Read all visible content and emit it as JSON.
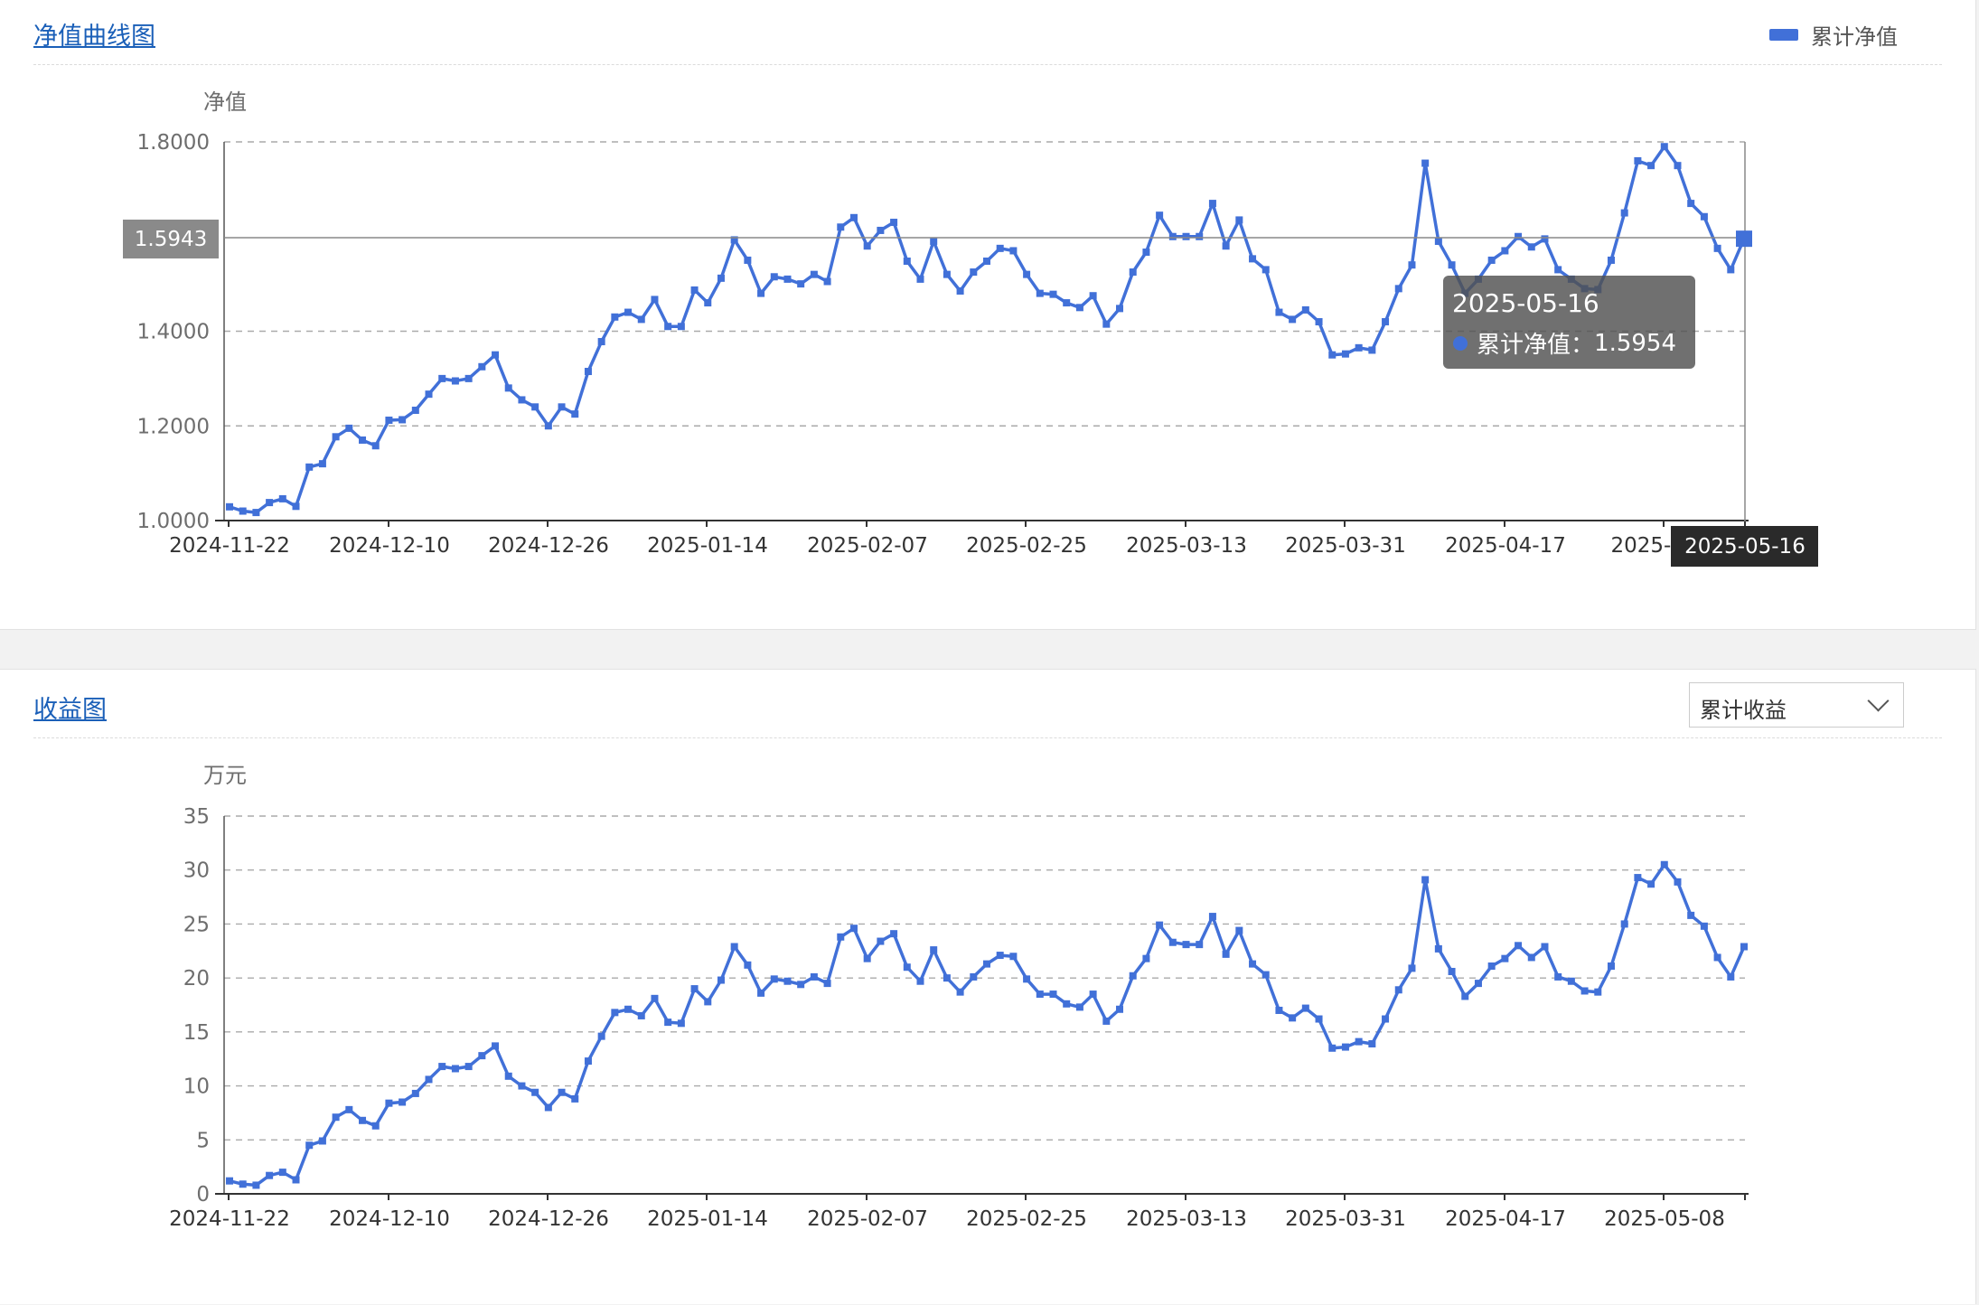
{
  "colors": {
    "series": "#4170d8",
    "title_link": "#1a5fb8",
    "grid": "#aaaaaa"
  },
  "nav_panel": {
    "title": "净值曲线图",
    "legend_label": "累计净值",
    "tooltip": {
      "date": "2025-05-16",
      "series_name": "累计净值",
      "sep": "：",
      "value": "1.5954"
    },
    "y_pointer_label": "1.5943",
    "x_pointer_label": "2025-05-16"
  },
  "profit_panel": {
    "title": "收益图",
    "select_value": "累计收益",
    "select_icon": "chevron-down-icon"
  },
  "chart_data": [
    {
      "type": "line",
      "ylabel": "净值",
      "ylim": [
        1.0,
        1.8
      ],
      "yticks": [
        "1.0000",
        "1.2000",
        "1.4000",
        "1.8000"
      ],
      "grid": true,
      "legend": "top-right",
      "xtick_labels": [
        "2024-11-22",
        "2024-12-10",
        "2024-12-26",
        "2025-01-14",
        "2025-02-07",
        "2025-02-25",
        "2025-03-13",
        "2025-03-31",
        "2025-04-17",
        "2025-05-0"
      ],
      "series": [
        {
          "name": "累计净值",
          "values": [
            1.029,
            1.02,
            1.017,
            1.038,
            1.046,
            1.03,
            1.113,
            1.12,
            1.177,
            1.195,
            1.17,
            1.158,
            1.212,
            1.213,
            1.233,
            1.267,
            1.3,
            1.295,
            1.3,
            1.325,
            1.35,
            1.28,
            1.255,
            1.24,
            1.2,
            1.24,
            1.225,
            1.315,
            1.378,
            1.43,
            1.44,
            1.425,
            1.467,
            1.41,
            1.41,
            1.487,
            1.46,
            1.512,
            1.593,
            1.55,
            1.48,
            1.515,
            1.51,
            1.5,
            1.52,
            1.505,
            1.62,
            1.64,
            1.58,
            1.613,
            1.63,
            1.548,
            1.51,
            1.59,
            1.52,
            1.485,
            1.525,
            1.548,
            1.575,
            1.57,
            1.52,
            1.48,
            1.478,
            1.46,
            1.45,
            1.475,
            1.415,
            1.448,
            1.525,
            1.567,
            1.645,
            1.6,
            1.6,
            1.6,
            1.67,
            1.58,
            1.635,
            1.553,
            1.53,
            1.44,
            1.425,
            1.445,
            1.42,
            1.35,
            1.352,
            1.365,
            1.36,
            1.42,
            1.49,
            1.54,
            1.755,
            1.59,
            1.54,
            1.48,
            1.51,
            1.55,
            1.57,
            1.6,
            1.578,
            1.595,
            1.53,
            1.51,
            1.49,
            1.488,
            1.55,
            1.65,
            1.76,
            1.75,
            1.79,
            1.75,
            1.67,
            1.642,
            1.575,
            1.53,
            1.5954
          ]
        }
      ]
    },
    {
      "type": "line",
      "ylabel": "万元",
      "ylim": [
        0,
        35
      ],
      "yticks": [
        "0",
        "5",
        "10",
        "15",
        "20",
        "25",
        "30",
        "35"
      ],
      "grid": true,
      "xtick_labels": [
        "2024-11-22",
        "2024-12-10",
        "2024-12-26",
        "2025-01-14",
        "2025-02-07",
        "2025-02-25",
        "2025-03-13",
        "2025-03-31",
        "2025-04-17",
        "2025-05-08"
      ],
      "series": [
        {
          "name": "累计收益",
          "values": [
            1.2,
            0.9,
            0.8,
            1.7,
            2.0,
            1.3,
            4.5,
            4.9,
            7.1,
            7.8,
            6.8,
            6.3,
            8.4,
            8.5,
            9.3,
            10.6,
            11.8,
            11.6,
            11.8,
            12.8,
            13.7,
            10.9,
            10.0,
            9.4,
            8.0,
            9.4,
            8.8,
            12.3,
            14.6,
            16.8,
            17.1,
            16.5,
            18.1,
            15.9,
            15.8,
            19.0,
            17.8,
            19.8,
            22.9,
            21.2,
            18.6,
            19.9,
            19.7,
            19.4,
            20.1,
            19.5,
            23.8,
            24.6,
            21.8,
            23.4,
            24.1,
            21.0,
            19.7,
            22.6,
            20.0,
            18.7,
            20.1,
            21.3,
            22.1,
            22.0,
            19.9,
            18.5,
            18.5,
            17.6,
            17.3,
            18.5,
            16.0,
            17.1,
            20.2,
            21.8,
            24.9,
            23.3,
            23.1,
            23.1,
            25.7,
            22.2,
            24.4,
            21.3,
            20.3,
            17.0,
            16.3,
            17.2,
            16.2,
            13.5,
            13.6,
            14.1,
            13.9,
            16.2,
            18.9,
            20.9,
            29.1,
            22.7,
            20.6,
            18.3,
            19.5,
            21.1,
            21.8,
            23.0,
            21.9,
            22.9,
            20.1,
            19.7,
            18.8,
            18.7,
            21.1,
            25.0,
            29.3,
            28.7,
            30.5,
            28.9,
            25.8,
            24.8,
            21.9,
            20.1,
            22.9
          ]
        }
      ]
    }
  ]
}
